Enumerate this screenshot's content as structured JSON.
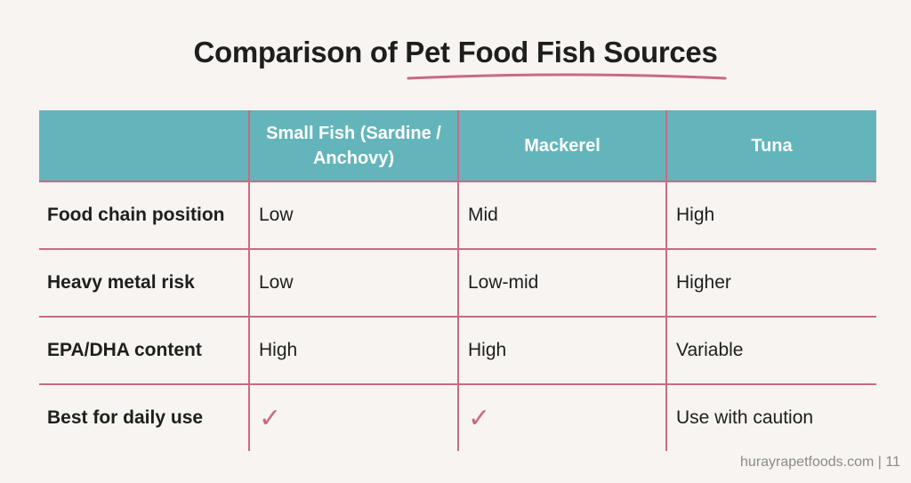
{
  "title": "Comparison of Pet Food Fish Sources",
  "table": {
    "header": [
      "Small Fish (Sardine / Anchovy)",
      "Mackerel",
      "Tuna"
    ],
    "rows": [
      [
        "Food chain position",
        "Low",
        "Mid",
        "High"
      ],
      [
        "Heavy metal risk",
        "Low",
        "Low-mid",
        "Higher"
      ],
      [
        "EPA/DHA content",
        "High",
        "High",
        "Variable"
      ],
      [
        "Best for daily use",
        "✓",
        "✓",
        "Use with caution"
      ]
    ]
  },
  "footer": "hurayrapetfoods.com | 11"
}
